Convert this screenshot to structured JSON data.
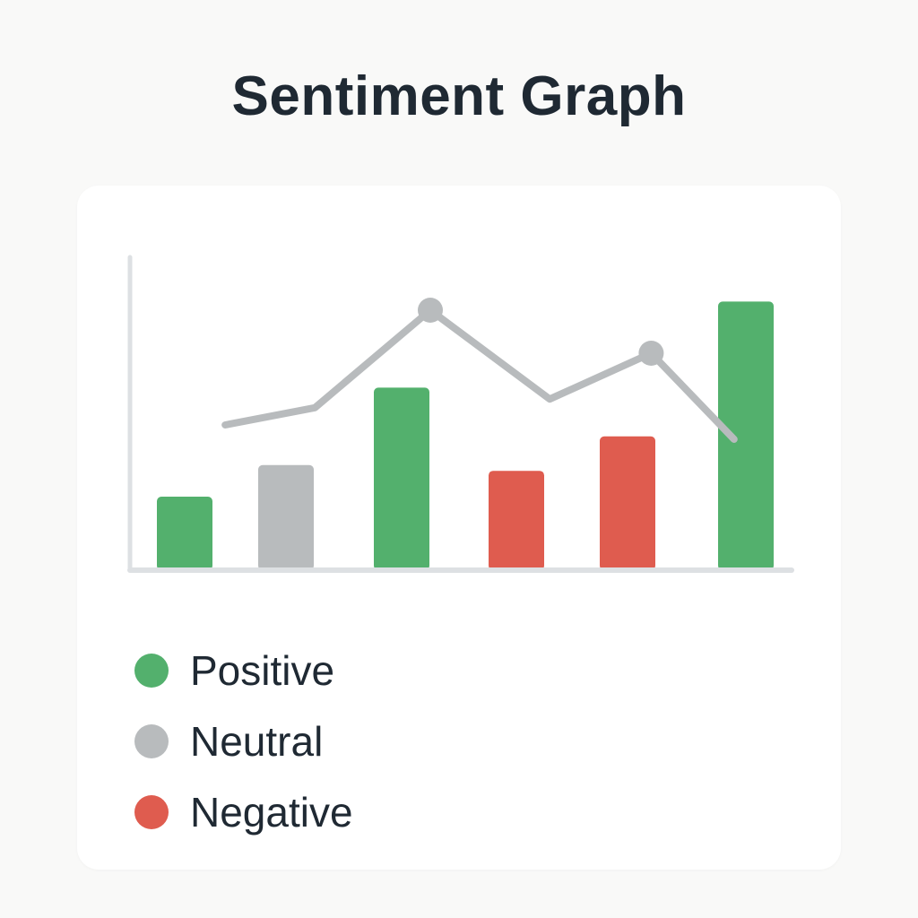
{
  "title": "Sentiment Graph",
  "colors": {
    "positive": "#53b06d",
    "neutral": "#b8bbbd",
    "negative": "#df5c4f",
    "trend": "#b8bbbd",
    "axis": "#dde0e3"
  },
  "legend": [
    {
      "label": "Positive",
      "color": "#53b06d"
    },
    {
      "label": "Neutral",
      "color": "#b8bbbd"
    },
    {
      "label": "Negative",
      "color": "#df5c4f"
    }
  ],
  "chart_data": {
    "type": "bar",
    "title": "Sentiment Graph",
    "xlabel": "",
    "ylabel": "",
    "ylim": [
      0,
      100
    ],
    "grid": false,
    "legend_position": "bottom-left",
    "bars": [
      {
        "sentiment": "Positive",
        "value": 25
      },
      {
        "sentiment": "Neutral",
        "value": 36
      },
      {
        "sentiment": "Positive",
        "value": 63
      },
      {
        "sentiment": "Negative",
        "value": 34
      },
      {
        "sentiment": "Negative",
        "value": 46
      },
      {
        "sentiment": "Positive",
        "value": 93
      }
    ],
    "trend_line": {
      "points": [
        {
          "x": 0.4,
          "y": 50
        },
        {
          "x": 1.25,
          "y": 56
        },
        {
          "x": 2.25,
          "y": 90
        },
        {
          "x": 3.3,
          "y": 59
        },
        {
          "x": 4.2,
          "y": 75
        },
        {
          "x": 4.9,
          "y": 45
        }
      ],
      "markers": [
        2,
        4
      ]
    }
  }
}
